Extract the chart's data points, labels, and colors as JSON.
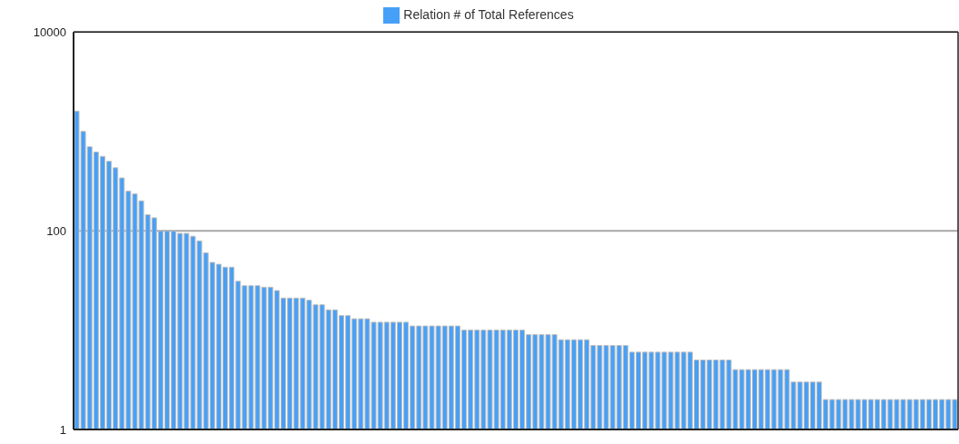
{
  "chart_data": {
    "type": "bar",
    "categories": [
      null,
      null,
      null,
      null,
      null,
      null,
      null,
      null,
      null,
      null,
      null,
      null,
      null,
      null,
      null,
      null,
      null,
      null,
      null,
      null,
      null,
      null,
      null,
      null,
      null,
      null,
      null,
      null,
      null,
      null,
      null,
      null,
      null,
      null,
      null,
      null,
      null,
      null,
      null,
      null,
      null,
      null,
      null,
      null,
      null,
      null,
      null,
      null,
      null,
      null,
      null,
      null,
      null,
      null,
      null,
      null,
      null,
      null,
      null,
      null,
      null,
      null,
      null,
      null,
      null,
      null,
      null,
      null,
      null,
      null,
      null,
      null,
      null,
      null,
      null,
      null,
      null,
      null,
      null,
      null,
      null,
      null,
      null,
      null,
      null,
      null,
      null,
      null,
      null,
      null,
      null,
      null,
      null,
      null,
      null,
      null,
      null,
      null,
      null,
      null,
      null,
      null,
      null,
      null,
      null,
      null,
      null,
      null,
      null,
      null,
      null,
      null,
      null,
      null,
      null,
      null,
      null,
      null,
      null,
      null,
      null,
      null,
      null,
      null,
      null,
      null,
      null,
      null,
      null,
      null,
      null,
      null,
      null,
      null,
      null,
      null,
      null
    ],
    "series": [
      {
        "name": "Relation # of Total References",
        "color": "#47a0f7",
        "values": [
          1600,
          1000,
          700,
          620,
          560,
          500,
          430,
          340,
          250,
          235,
          200,
          145,
          135,
          100,
          100,
          100,
          94,
          94,
          88,
          79,
          60,
          48,
          46,
          43,
          43,
          31,
          28,
          28,
          28,
          27,
          27,
          25,
          21,
          21,
          21,
          21,
          20,
          18,
          18,
          16,
          16,
          14,
          14,
          13,
          13,
          13,
          12,
          12,
          12,
          12,
          12,
          12,
          11,
          11,
          11,
          11,
          11,
          11,
          11,
          11,
          10,
          10,
          10,
          10,
          10,
          10,
          10,
          10,
          10,
          10,
          9,
          9,
          9,
          9,
          9,
          8,
          8,
          8,
          8,
          8,
          7,
          7,
          7,
          7,
          7,
          7,
          6,
          6,
          6,
          6,
          6,
          6,
          6,
          6,
          6,
          6,
          5,
          5,
          5,
          5,
          5,
          5,
          4,
          4,
          4,
          4,
          4,
          4,
          4,
          4,
          4,
          3,
          3,
          3,
          3,
          3,
          2,
          2,
          2,
          2,
          2,
          2,
          2,
          2,
          2,
          2,
          2,
          2,
          2,
          2,
          2,
          2,
          2,
          2,
          2,
          2,
          2
        ]
      }
    ],
    "log": true,
    "ylim": [
      1,
      10000
    ],
    "yticks": [
      1,
      100,
      10000
    ],
    "grid": "y",
    "legend": "top",
    "tick_labels": "y"
  }
}
